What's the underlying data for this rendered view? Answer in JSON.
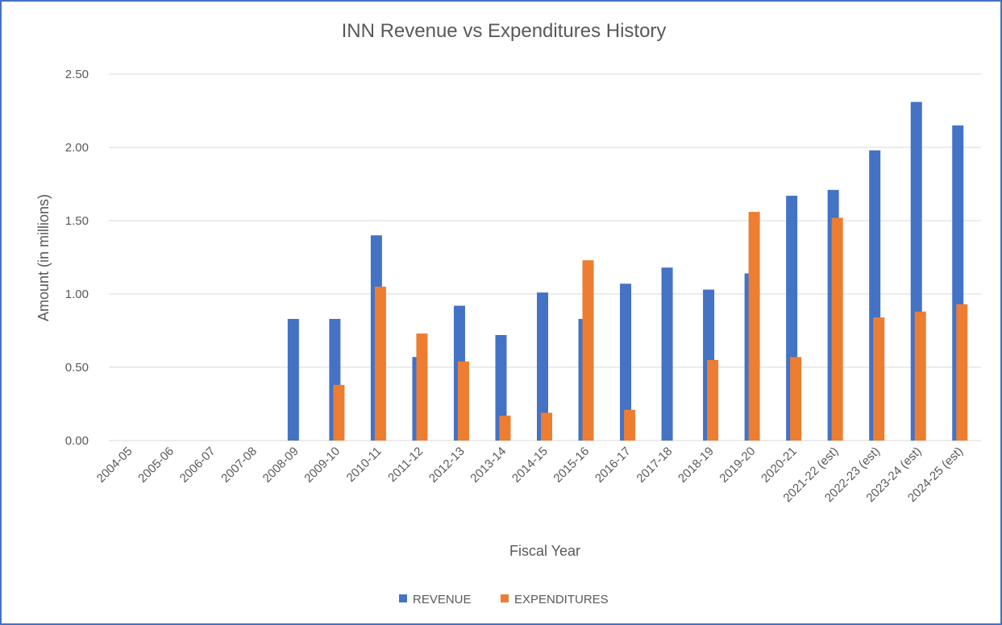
{
  "chart_data": {
    "type": "bar",
    "title": "INN Revenue vs Expenditures History",
    "x_label": "Fiscal Year",
    "y_label": "Amount (in millions)",
    "categories": [
      "2004-05",
      "2005-06",
      "2006-07",
      "2007-08",
      "2008-09",
      "2009-10",
      "2010-11",
      "2011-12",
      "2012-13",
      "2013-14",
      "2014-15",
      "2015-16",
      "2016-17",
      "2017-18",
      "2018-19",
      "2019-20",
      "2020-21",
      "2021-22 (est)",
      "2022-23 (est)",
      "2023-24 (est)",
      "2024-25 (est)"
    ],
    "series": [
      {
        "name": "REVENUE",
        "color": "#4472c4",
        "values": [
          null,
          null,
          null,
          null,
          0.83,
          0.83,
          1.4,
          0.57,
          0.92,
          0.72,
          1.01,
          0.83,
          1.07,
          1.18,
          1.03,
          1.14,
          1.67,
          1.71,
          1.98,
          2.31,
          2.15
        ]
      },
      {
        "name": "EXPENDITURES",
        "color": "#ed7d31",
        "values": [
          null,
          null,
          null,
          null,
          null,
          0.38,
          1.05,
          0.73,
          0.54,
          0.17,
          0.19,
          1.23,
          0.21,
          null,
          0.55,
          1.56,
          0.57,
          1.52,
          0.84,
          0.88,
          0.93
        ]
      }
    ],
    "ylim": [
      0,
      2.5
    ],
    "yticks": [
      {
        "value": 0,
        "label": "0.00"
      },
      {
        "value": 0.5,
        "label": "0.50"
      },
      {
        "value": 1,
        "label": "1.00"
      },
      {
        "value": 1.5,
        "label": "1.50"
      },
      {
        "value": 2,
        "label": "2.00"
      },
      {
        "value": 2.5,
        "label": "2.50"
      }
    ],
    "grid": true,
    "legend": "bottom"
  }
}
